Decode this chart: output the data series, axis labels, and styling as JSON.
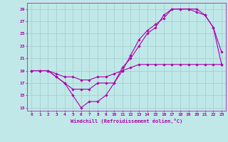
{
  "xlabel": "Windchill (Refroidissement éolien,°C)",
  "background_color": "#c0e8e8",
  "grid_color": "#a0cccc",
  "line_color": "#aa00aa",
  "xlim": [
    -0.5,
    23.5
  ],
  "ylim": [
    12.5,
    30.0
  ],
  "xticks": [
    0,
    1,
    2,
    3,
    4,
    5,
    6,
    7,
    8,
    9,
    10,
    11,
    12,
    13,
    14,
    15,
    16,
    17,
    18,
    19,
    20,
    21,
    22,
    23
  ],
  "yticks": [
    13,
    15,
    17,
    19,
    21,
    23,
    25,
    27,
    29
  ],
  "line1_x": [
    0,
    1,
    2,
    3,
    4,
    5,
    6,
    7,
    8,
    9,
    10,
    11,
    12,
    13,
    14,
    15,
    16,
    17,
    18,
    19,
    20,
    21,
    22,
    23
  ],
  "line1_y": [
    19,
    19,
    19,
    18,
    17,
    15,
    13,
    14,
    14,
    15,
    17,
    19.5,
    21,
    23,
    25,
    26,
    28,
    29,
    29,
    29,
    29,
    28,
    26,
    22
  ],
  "line2_x": [
    0,
    1,
    2,
    3,
    4,
    5,
    6,
    7,
    8,
    9,
    10,
    11,
    12,
    13,
    14,
    15,
    16,
    17,
    18,
    19,
    20,
    21,
    22,
    23
  ],
  "line2_y": [
    19,
    19,
    19,
    18,
    17,
    16,
    16,
    16,
    17,
    17,
    17,
    19,
    21.5,
    24,
    25.5,
    26.5,
    27.5,
    29,
    29,
    29,
    28.5,
    28,
    26,
    20
  ],
  "line3_x": [
    0,
    1,
    2,
    3,
    4,
    5,
    6,
    7,
    8,
    9,
    10,
    11,
    12,
    13,
    14,
    15,
    16,
    17,
    18,
    19,
    20,
    21,
    22,
    23
  ],
  "line3_y": [
    19,
    19,
    19,
    18.5,
    18,
    18,
    17.5,
    17.5,
    18,
    18,
    18.5,
    19,
    19.5,
    20,
    20,
    20,
    20,
    20,
    20,
    20,
    20,
    20,
    20,
    20
  ]
}
